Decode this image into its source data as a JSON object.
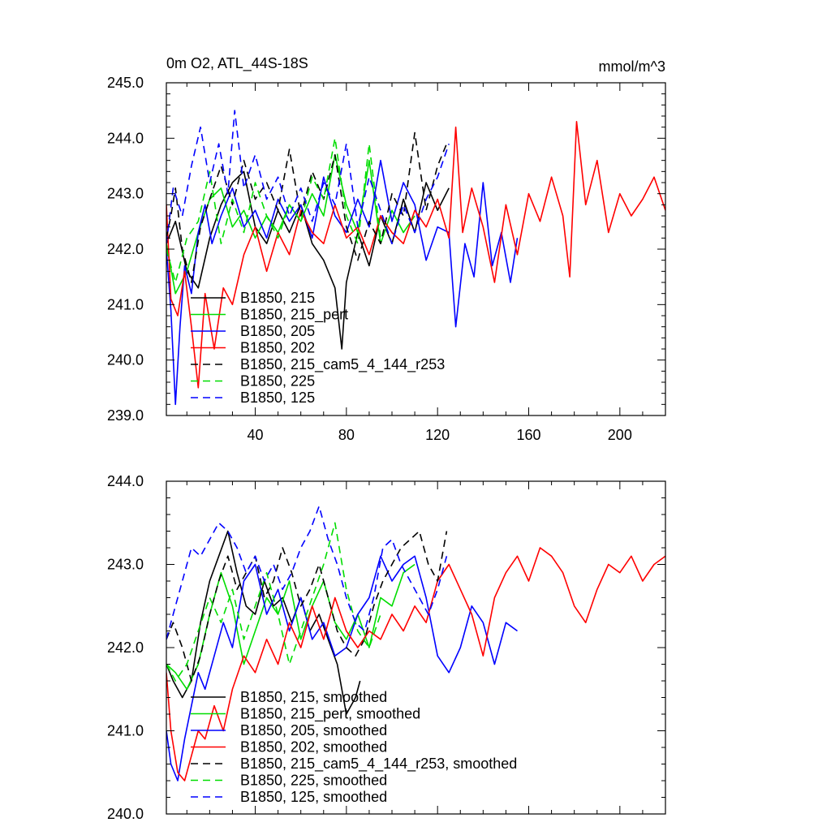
{
  "chart_data": [
    {
      "type": "line",
      "title": "0m O2, ATL_44S-18S",
      "units": "mmol/m^3",
      "xlim": [
        1,
        220
      ],
      "ylim": [
        239.0,
        245.0
      ],
      "xticks": [
        40,
        80,
        120,
        160,
        200
      ],
      "xtick_labels": [
        "40",
        "80",
        "120",
        "160",
        "200"
      ],
      "yticks": [
        239.0,
        240.0,
        241.0,
        242.0,
        243.0,
        244.0,
        245.0
      ],
      "ytick_labels": [
        "239.0",
        "240.0",
        "241.0",
        "242.0",
        "243.0",
        "244.0",
        "245.0"
      ],
      "legend_position": "lower-left",
      "series": [
        {
          "name": "B1850, 215",
          "color": "#000000",
          "dash": "solid",
          "x": [
            1,
            5,
            10,
            15,
            20,
            25,
            30,
            35,
            40,
            45,
            50,
            55,
            60,
            65,
            70,
            75,
            78,
            80,
            85,
            90,
            95,
            100,
            105,
            110,
            115,
            120,
            125
          ],
          "values": [
            242.1,
            242.5,
            241.6,
            241.3,
            242.2,
            242.8,
            243.2,
            243.4,
            242.4,
            242.1,
            242.7,
            242.3,
            242.8,
            242.1,
            241.8,
            241.3,
            240.2,
            241.4,
            242.3,
            241.7,
            242.6,
            242.1,
            242.9,
            242.3,
            243.2,
            242.7,
            243.1
          ]
        },
        {
          "name": "B1850, 215_pert",
          "color": "#00dd00",
          "dash": "solid",
          "x": [
            1,
            5,
            10,
            15,
            20,
            25,
            30,
            35,
            40,
            45,
            50,
            55,
            60,
            65,
            70,
            75,
            80,
            85,
            90,
            95,
            100,
            105,
            110
          ],
          "values": [
            242.1,
            241.2,
            241.6,
            242.3,
            242.9,
            243.1,
            242.4,
            242.7,
            242.2,
            242.6,
            242.3,
            242.8,
            242.5,
            243.0,
            242.6,
            243.7,
            242.8,
            242.3,
            243.6,
            242.1,
            242.7,
            242.3,
            242.6
          ]
        },
        {
          "name": "B1850, 205",
          "color": "#0000ff",
          "dash": "solid",
          "x": [
            1,
            3,
            5,
            7,
            9,
            12,
            15,
            18,
            21,
            25,
            30,
            35,
            40,
            45,
            50,
            55,
            60,
            65,
            70,
            75,
            80,
            85,
            90,
            95,
            100,
            105,
            110,
            115,
            120,
            125,
            128,
            132,
            136,
            140,
            144,
            148,
            152,
            155
          ],
          "values": [
            242.0,
            240.9,
            239.2,
            240.6,
            241.7,
            241.2,
            242.3,
            242.8,
            242.1,
            242.6,
            243.1,
            242.4,
            242.7,
            242.2,
            242.9,
            242.5,
            242.8,
            242.2,
            243.3,
            242.6,
            242.3,
            242.9,
            242.4,
            243.6,
            242.5,
            243.2,
            242.8,
            241.8,
            242.4,
            242.3,
            240.6,
            242.1,
            241.5,
            243.2,
            241.7,
            242.3,
            241.4,
            242.2
          ]
        },
        {
          "name": "B1850, 202",
          "color": "#ff0000",
          "dash": "solid",
          "x": [
            1,
            3,
            6,
            9,
            12,
            15,
            18,
            22,
            26,
            30,
            35,
            40,
            45,
            50,
            55,
            60,
            65,
            70,
            75,
            80,
            85,
            90,
            95,
            100,
            105,
            110,
            115,
            120,
            125,
            128,
            131,
            135,
            140,
            145,
            150,
            155,
            160,
            165,
            170,
            175,
            178,
            181,
            185,
            190,
            195,
            200,
            205,
            210,
            215,
            220
          ],
          "values": [
            242.8,
            241.1,
            240.8,
            241.6,
            240.6,
            239.5,
            241.2,
            240.2,
            241.3,
            241.0,
            241.9,
            242.4,
            241.6,
            242.3,
            241.9,
            242.7,
            242.3,
            242.1,
            242.8,
            242.2,
            242.4,
            241.9,
            242.6,
            242.3,
            242.1,
            242.7,
            242.4,
            242.9,
            242.2,
            244.2,
            242.3,
            243.1,
            242.4,
            241.4,
            242.8,
            241.9,
            243.0,
            242.5,
            243.3,
            242.6,
            241.5,
            244.3,
            242.8,
            243.6,
            242.3,
            243.0,
            242.6,
            242.9,
            243.3,
            242.7
          ]
        },
        {
          "name": "B1850, 215_cam5_4_144_r253",
          "color": "#000000",
          "dash": "dashed",
          "x": [
            1,
            3,
            5,
            8,
            12,
            16,
            20,
            25,
            30,
            35,
            40,
            45,
            50,
            55,
            60,
            65,
            70,
            75,
            80,
            85,
            90,
            95,
            100,
            105,
            110,
            115,
            120,
            124
          ],
          "values": [
            242.2,
            242.6,
            243.1,
            242.0,
            241.4,
            242.4,
            242.9,
            243.5,
            242.8,
            243.6,
            242.9,
            243.2,
            242.7,
            243.8,
            242.6,
            243.4,
            242.9,
            243.7,
            242.4,
            241.8,
            242.5,
            242.1,
            243.0,
            242.6,
            244.1,
            242.7,
            243.5,
            243.9
          ]
        },
        {
          "name": "B1850, 225",
          "color": "#00dd00",
          "dash": "dashed",
          "x": [
            1,
            5,
            10,
            15,
            20,
            25,
            30,
            35,
            40,
            45,
            50,
            55,
            60,
            65,
            70,
            75,
            80,
            85,
            90,
            95
          ],
          "values": [
            242.0,
            241.4,
            242.2,
            242.5,
            243.4,
            242.1,
            242.9,
            242.3,
            243.2,
            242.6,
            242.2,
            242.8,
            242.5,
            243.3,
            242.9,
            244.0,
            242.6,
            242.1,
            243.9,
            242.2
          ]
        },
        {
          "name": "B1850, 125",
          "color": "#0000ff",
          "dash": "dashed",
          "x": [
            1,
            4,
            8,
            12,
            16,
            20,
            24,
            28,
            31,
            35,
            40,
            45,
            50,
            55,
            60,
            65,
            70,
            75,
            80,
            85,
            90,
            95,
            100,
            105,
            110,
            115,
            120,
            125
          ],
          "values": [
            242.1,
            243.1,
            242.6,
            243.5,
            244.2,
            243.2,
            243.9,
            243.0,
            244.5,
            243.1,
            243.7,
            242.9,
            243.3,
            242.6,
            243.1,
            242.5,
            243.2,
            242.8,
            243.9,
            242.4,
            243.3,
            242.7,
            242.1,
            242.8,
            242.3,
            242.9,
            243.3,
            243.9
          ]
        }
      ]
    },
    {
      "type": "line",
      "title": "",
      "xlim": [
        1,
        220
      ],
      "ylim": [
        240.0,
        244.0
      ],
      "xticks": [
        40,
        80,
        120,
        160,
        200
      ],
      "yticks": [
        240.0,
        241.0,
        242.0,
        243.0,
        244.0
      ],
      "ytick_labels": [
        "240.0",
        "241.0",
        "242.0",
        "243.0",
        "244.0"
      ],
      "legend_position": "lower-left",
      "series": [
        {
          "name": "B1850, 215, smoothed",
          "color": "#000000",
          "dash": "solid",
          "x": [
            1,
            4,
            8,
            12,
            16,
            20,
            24,
            28,
            32,
            36,
            40,
            44,
            48,
            52,
            56,
            60,
            64,
            68,
            72,
            76,
            80,
            84,
            86
          ],
          "values": [
            241.8,
            241.6,
            241.4,
            241.6,
            242.3,
            242.8,
            243.1,
            243.4,
            242.9,
            242.5,
            242.4,
            242.8,
            242.5,
            242.6,
            242.3,
            242.6,
            242.2,
            242.4,
            242.1,
            241.8,
            241.2,
            241.4,
            241.6
          ]
        },
        {
          "name": "B1850, 215_pert, smoothed",
          "color": "#00dd00",
          "dash": "solid",
          "x": [
            1,
            5,
            10,
            15,
            20,
            25,
            30,
            35,
            40,
            45,
            50,
            55,
            60,
            65,
            70,
            75,
            80,
            85,
            90,
            95,
            100,
            105,
            110
          ],
          "values": [
            241.8,
            241.7,
            241.5,
            241.8,
            242.4,
            242.9,
            242.5,
            241.8,
            242.2,
            242.6,
            242.4,
            242.8,
            242.1,
            242.5,
            242.8,
            242.3,
            242.1,
            242.4,
            242.0,
            242.6,
            242.5,
            242.9,
            243.0
          ]
        },
        {
          "name": "B1850, 205, smoothed",
          "color": "#0000ff",
          "dash": "solid",
          "x": [
            1,
            3,
            6,
            9,
            12,
            15,
            18,
            22,
            26,
            30,
            35,
            40,
            45,
            50,
            55,
            60,
            65,
            70,
            75,
            80,
            85,
            90,
            95,
            100,
            105,
            110,
            115,
            120,
            125,
            130,
            135,
            140,
            145,
            150,
            155
          ],
          "values": [
            241.0,
            240.6,
            240.4,
            240.9,
            241.3,
            241.7,
            241.5,
            241.9,
            242.3,
            242.0,
            242.8,
            243.0,
            242.4,
            242.7,
            242.2,
            242.6,
            242.1,
            242.3,
            241.9,
            242.0,
            242.4,
            242.6,
            243.1,
            242.8,
            243.0,
            243.1,
            242.6,
            241.9,
            241.7,
            242.0,
            242.5,
            242.3,
            241.8,
            242.3,
            242.2
          ]
        },
        {
          "name": "B1850, 202, smoothed",
          "color": "#ff0000",
          "dash": "solid",
          "x": [
            1,
            3,
            6,
            9,
            12,
            15,
            18,
            22,
            26,
            30,
            35,
            40,
            45,
            50,
            55,
            60,
            65,
            70,
            75,
            80,
            85,
            90,
            95,
            100,
            105,
            110,
            115,
            120,
            125,
            130,
            135,
            140,
            145,
            150,
            155,
            160,
            165,
            170,
            175,
            180,
            185,
            190,
            195,
            200,
            205,
            210,
            215,
            220
          ],
          "values": [
            241.7,
            241.0,
            240.5,
            240.4,
            240.7,
            241.0,
            240.9,
            241.3,
            241.0,
            241.5,
            241.9,
            241.7,
            242.1,
            241.8,
            242.3,
            242.0,
            242.5,
            242.1,
            242.6,
            242.2,
            242.0,
            242.2,
            242.1,
            242.4,
            242.2,
            242.5,
            242.3,
            242.8,
            243.0,
            242.7,
            242.4,
            241.9,
            242.6,
            242.9,
            243.1,
            242.8,
            243.2,
            243.1,
            242.9,
            242.5,
            242.3,
            242.7,
            243.0,
            242.9,
            243.1,
            242.8,
            243.0,
            243.1
          ]
        },
        {
          "name": "B1850, 215_cam5_4_144_r253, smoothed",
          "color": "#000000",
          "dash": "dashed",
          "x": [
            1,
            4,
            8,
            12,
            16,
            20,
            24,
            28,
            32,
            36,
            40,
            44,
            48,
            52,
            56,
            60,
            64,
            68,
            72,
            76,
            80,
            84,
            88,
            92,
            96,
            100,
            104,
            108,
            112,
            116,
            120,
            124
          ],
          "values": [
            242.1,
            242.3,
            242.0,
            241.6,
            241.9,
            242.4,
            242.8,
            243.1,
            242.7,
            242.9,
            243.1,
            242.6,
            242.8,
            243.2,
            242.9,
            242.5,
            242.7,
            243.0,
            242.6,
            242.2,
            242.0,
            241.9,
            242.1,
            242.5,
            242.8,
            243.0,
            243.2,
            243.3,
            243.4,
            243.0,
            242.8,
            243.4
          ]
        },
        {
          "name": "B1850, 225, smoothed",
          "color": "#00dd00",
          "dash": "dashed",
          "x": [
            1,
            5,
            10,
            15,
            20,
            25,
            30,
            35,
            40,
            45,
            50,
            55,
            60,
            65,
            70,
            75,
            80,
            85,
            90,
            95
          ],
          "values": [
            241.8,
            241.6,
            241.8,
            242.2,
            242.6,
            242.3,
            242.7,
            242.1,
            242.5,
            242.9,
            242.4,
            241.8,
            242.2,
            242.6,
            243.0,
            243.5,
            242.7,
            242.2,
            242.0,
            242.4
          ]
        },
        {
          "name": "B1850, 125, smoothed",
          "color": "#0000ff",
          "dash": "dashed",
          "x": [
            1,
            4,
            8,
            12,
            16,
            20,
            24,
            28,
            32,
            36,
            40,
            44,
            48,
            52,
            56,
            60,
            64,
            68,
            72,
            76,
            80,
            84,
            88,
            92,
            96,
            100,
            104,
            108,
            112,
            116,
            120,
            124
          ],
          "values": [
            242.1,
            242.4,
            242.8,
            243.2,
            243.1,
            243.3,
            243.5,
            243.4,
            243.2,
            242.9,
            243.1,
            242.8,
            243.0,
            242.7,
            242.9,
            243.2,
            243.4,
            243.7,
            243.3,
            243.0,
            242.6,
            242.3,
            242.2,
            242.6,
            243.2,
            243.3,
            243.0,
            242.8,
            242.6,
            242.4,
            242.7,
            243.1
          ]
        }
      ]
    }
  ]
}
